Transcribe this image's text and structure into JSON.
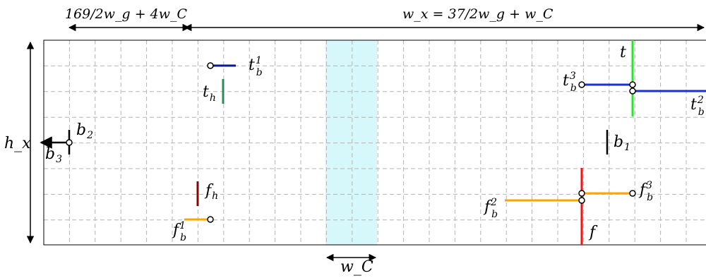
{
  "top_labels": {
    "left_width": "169/2w_g + 4w_C",
    "right_width": "w_x = 37/2w_g + w_C"
  },
  "side_label": "h_x",
  "bottom_label": "w_C",
  "segment_labels": {
    "t_b1": {
      "main": "t",
      "sub": "b",
      "sup": "1"
    },
    "t_h": {
      "main": "t",
      "sub": "h"
    },
    "t_b3": {
      "main": "t",
      "sub": "b",
      "sup": "3"
    },
    "t": {
      "main": "t"
    },
    "t_b2": {
      "main": "t",
      "sub": "b",
      "sup": "2"
    },
    "b2": {
      "main": "b",
      "sub": "2"
    },
    "b3": {
      "main": "b",
      "sub": "3"
    },
    "b1": {
      "main": "b",
      "sub": "1"
    },
    "f_h": {
      "main": "f",
      "sub": "h"
    },
    "f_b1": {
      "main": "f",
      "sub": "b",
      "sup": "1"
    },
    "f_b2": {
      "main": "f",
      "sub": "b",
      "sup": "2"
    },
    "f_b3": {
      "main": "f",
      "sub": "b",
      "sup": "3"
    },
    "f": {
      "main": "f"
    }
  },
  "colors": {
    "grid": "#b4b4b4",
    "channel": "#d6f8fa",
    "blue": "#1a2fd4",
    "navy": "#0a1a8c",
    "green": "#27e827",
    "darkgreen": "#2e8b57",
    "red": "#f01414",
    "darkred": "#8b0000",
    "orange": "#ffa500",
    "black": "#000000"
  }
}
